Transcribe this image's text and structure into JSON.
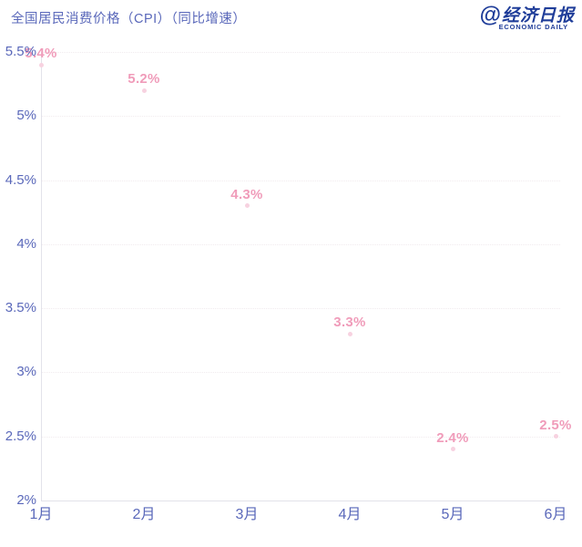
{
  "header": {
    "title": "全国居民消费价格（CPI）（同比增速）"
  },
  "logo": {
    "at": "@",
    "name": "经济日报",
    "subtitle": "ECONOMIC DAILY"
  },
  "chart_data": {
    "type": "line",
    "title": "全国居民消费价格（CPI）（同比增速）",
    "categories": [
      "1月",
      "2月",
      "3月",
      "4月",
      "5月",
      "6月"
    ],
    "values": [
      5.4,
      5.2,
      4.3,
      3.3,
      2.4,
      2.5
    ],
    "data_labels": [
      "5.4%",
      "5.2%",
      "4.3%",
      "3.3%",
      "2.4%",
      "2.5%"
    ],
    "xlabel": "",
    "ylabel": "",
    "ylim": [
      2,
      5.5
    ],
    "y_ticks": [
      {
        "value": 5.5,
        "label": "5.5%"
      },
      {
        "value": 5,
        "label": "5%"
      },
      {
        "value": 4.5,
        "label": "4.5%"
      },
      {
        "value": 4,
        "label": "4%"
      },
      {
        "value": 3.5,
        "label": "3.5%"
      },
      {
        "value": 3,
        "label": "3%"
      },
      {
        "value": 2.5,
        "label": "2.5%"
      },
      {
        "value": 2,
        "label": "2%"
      }
    ],
    "grid": "horizontal-dotted",
    "legend": "none",
    "series_style": "data labels shown above points; line/markers nearly invisible pale pink"
  },
  "colors": {
    "title_text": "#5a68ba",
    "axis_text": "#5a68ba",
    "data_label": "#f09cba",
    "logo": "#1f3d99",
    "gridline": "#f1ebee",
    "axis_line": "#e2e2ea",
    "point": "#f7d2e0",
    "background": "#ffffff"
  }
}
